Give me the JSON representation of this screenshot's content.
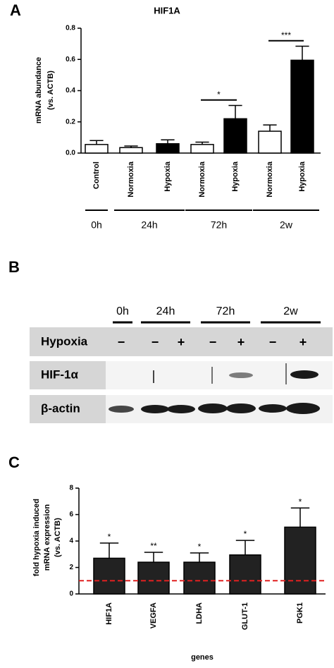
{
  "panel_labels": [
    "A",
    "B",
    "C"
  ],
  "chart_data": [
    {
      "type": "bar",
      "title": "HIF1A",
      "ylabel": [
        "mRNA abundance",
        "(vs. ACTB)"
      ],
      "categories": [
        "Control",
        "Normoxia",
        "Hypoxia",
        "Normoxia",
        "Hypoxia",
        "Normoxia",
        "Hypoxia"
      ],
      "values": [
        0.055,
        0.035,
        0.06,
        0.055,
        0.22,
        0.14,
        0.595
      ],
      "errors": [
        0.025,
        0.01,
        0.025,
        0.015,
        0.085,
        0.04,
        0.09
      ],
      "colors": [
        "#ffffff",
        "#ffffff",
        "#000000",
        "#ffffff",
        "#000000",
        "#ffffff",
        "#000000"
      ],
      "ylim": [
        0,
        0.8
      ],
      "yticks": [
        {
          "value": 0,
          "label": "0.0"
        },
        0.2,
        0.4,
        0.6,
        0.8
      ],
      "groups": [
        {
          "label": "0h",
          "start": 0,
          "end": 0
        },
        {
          "label": "24h",
          "start": 1,
          "end": 2
        },
        {
          "label": "72h",
          "start": 3,
          "end": 4
        },
        {
          "label": "2w",
          "start": 5,
          "end": 6
        }
      ],
      "significance": [
        {
          "label": "*",
          "pair": [
            3,
            4
          ],
          "y": 0.34
        },
        {
          "label": "***",
          "pair": [
            5,
            6
          ],
          "y": 0.72
        }
      ]
    },
    {
      "type": "bar",
      "ylabel": [
        "fold hypoxia induced",
        "mRNA expression",
        "(vs. ACTB)"
      ],
      "xlabel": "genes",
      "categories": [
        "HIF1A",
        "VEGFA",
        "LDHA",
        "GLUT-1",
        "PGK1"
      ],
      "values": [
        2.7,
        2.4,
        2.4,
        2.95,
        5.05
      ],
      "errors": [
        1.15,
        0.75,
        0.7,
        1.1,
        1.45
      ],
      "annotations": [
        "*",
        "**",
        "*",
        "*",
        "*"
      ],
      "color": "#222222",
      "ylim": [
        0,
        8
      ],
      "yticks": [
        0,
        2,
        4,
        6,
        8
      ],
      "hline": 1,
      "hline_color": "#e02020"
    }
  ],
  "blot": {
    "times": [
      "0h",
      "24h",
      "72h",
      "2w"
    ],
    "rows": [
      "Hypoxia",
      "HIF-1α",
      "β-actin"
    ],
    "signs": [
      "−",
      "−",
      "+",
      "−",
      "+",
      "−",
      "+"
    ]
  }
}
